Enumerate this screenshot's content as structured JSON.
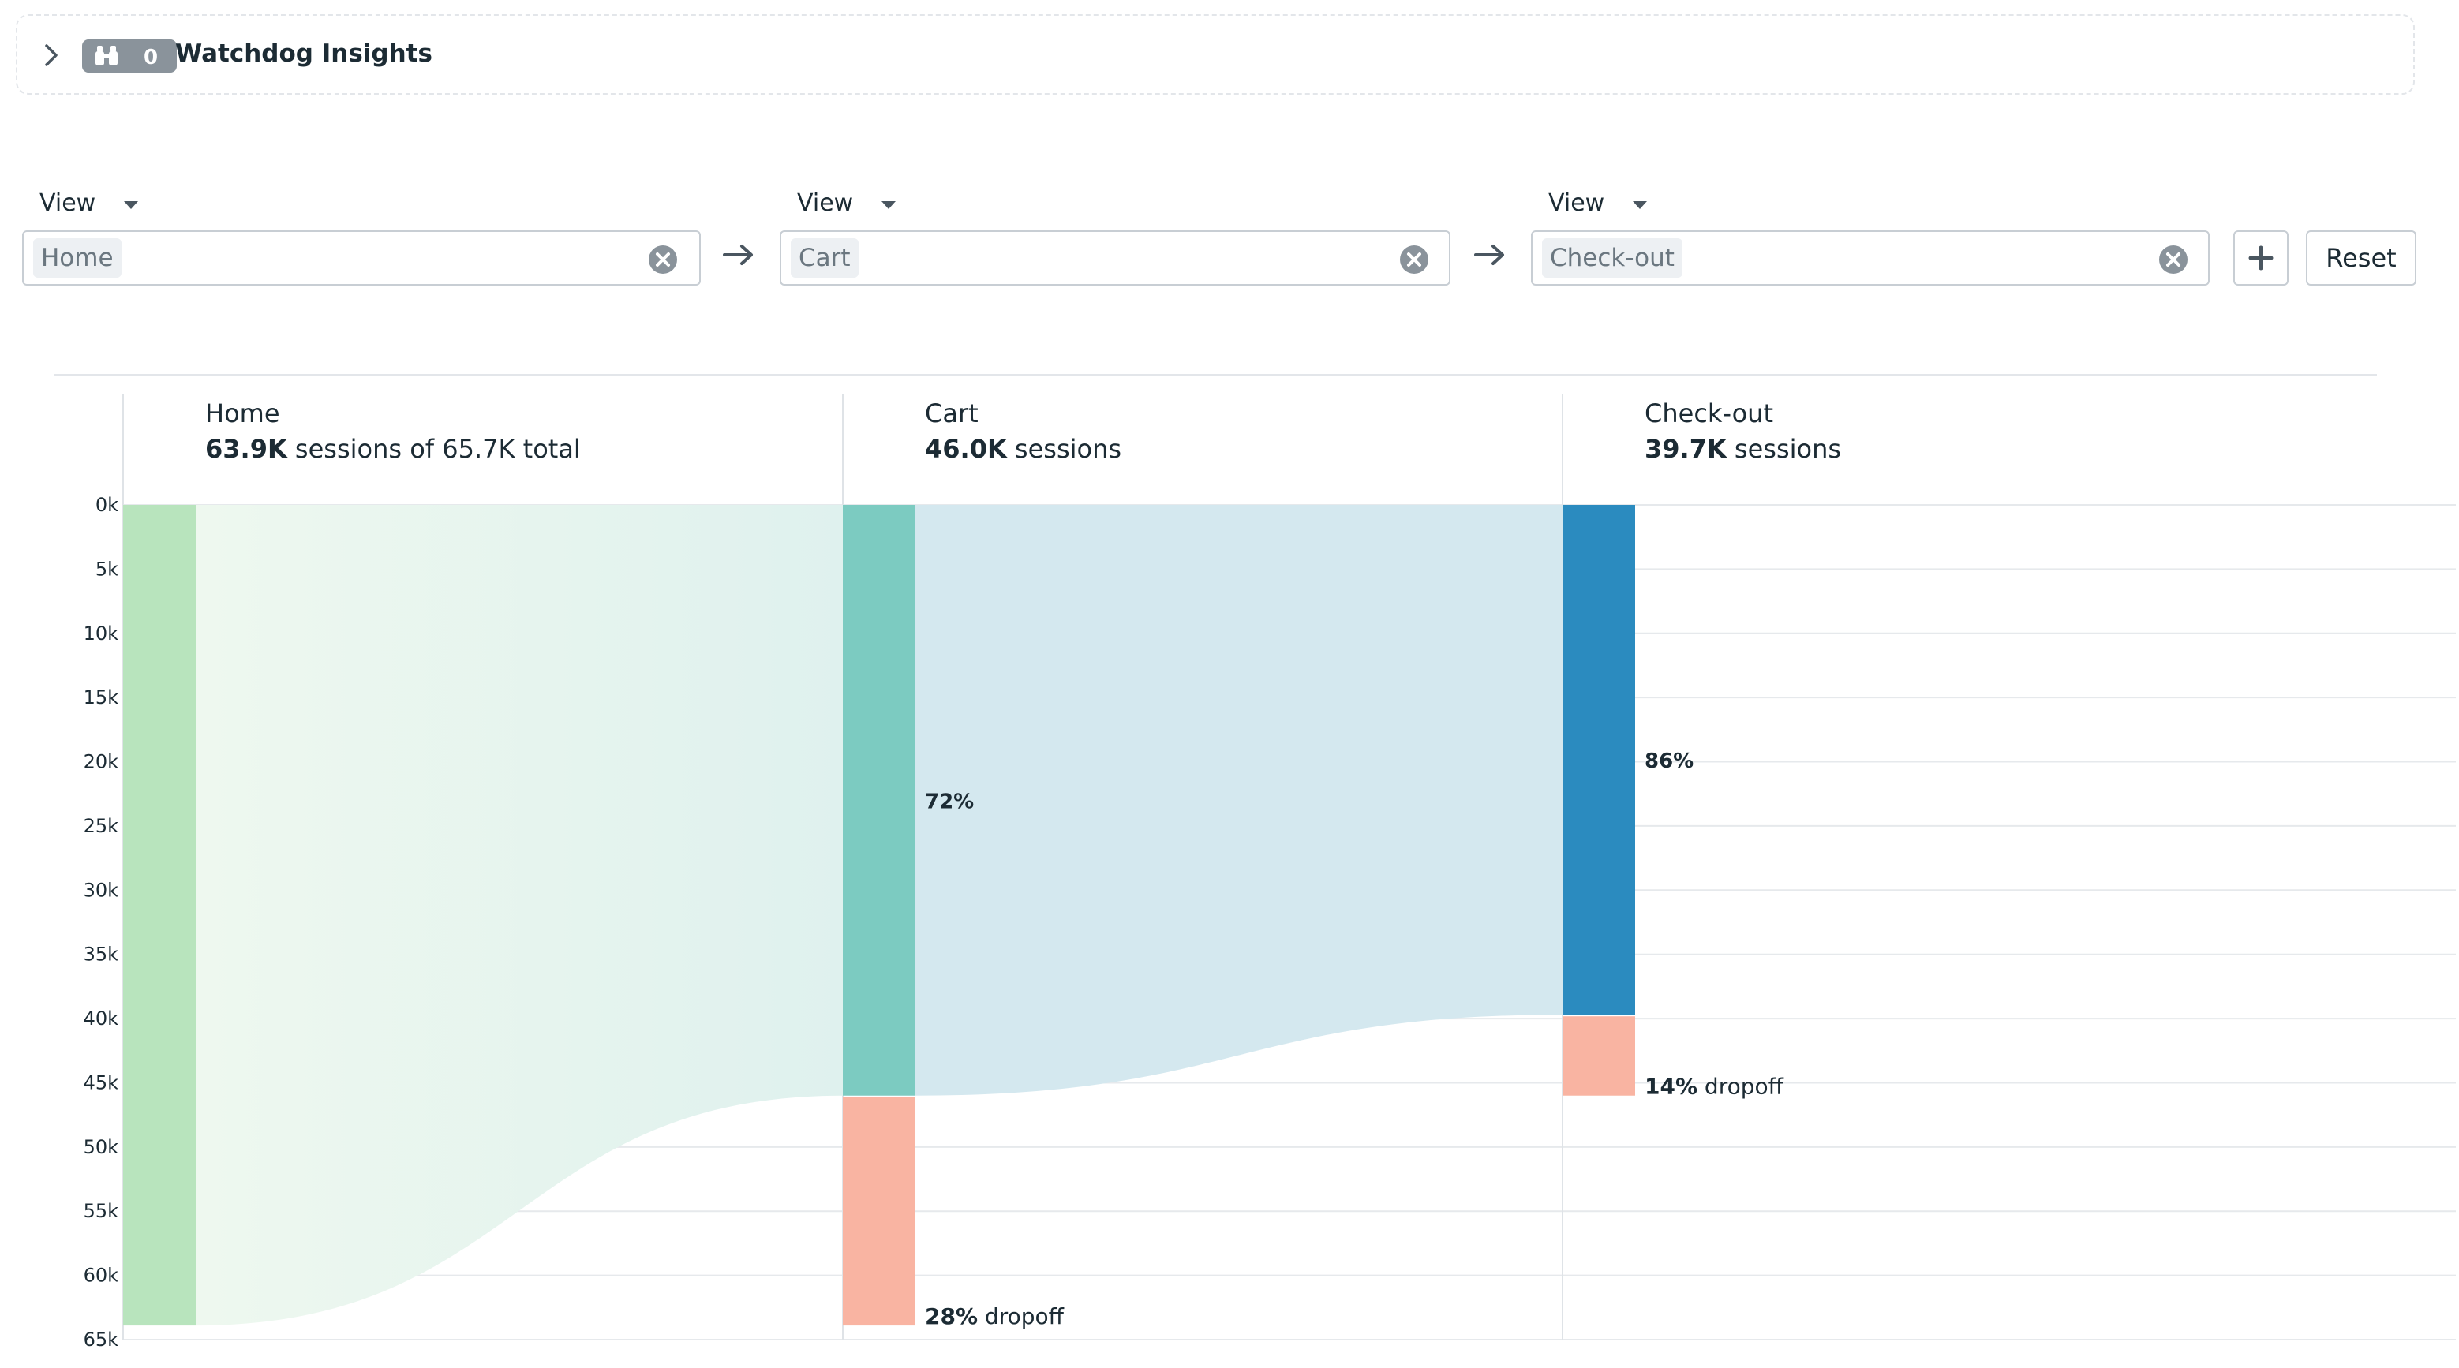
{
  "watchdog": {
    "title": "Watchdog Insights",
    "count": "0"
  },
  "steps": [
    {
      "label": "View",
      "value": "Home"
    },
    {
      "label": "View",
      "value": "Cart"
    },
    {
      "label": "View",
      "value": "Check-out"
    }
  ],
  "actions": {
    "reset_label": "Reset"
  },
  "chart_data": {
    "type": "funnel",
    "y_ticks": [
      "0k",
      "5k",
      "10k",
      "15k",
      "20k",
      "25k",
      "30k",
      "35k",
      "40k",
      "45k",
      "50k",
      "55k",
      "60k",
      "65k"
    ],
    "ylim": [
      0,
      65000
    ],
    "grid": true,
    "steps": [
      {
        "name": "Home",
        "sessions": 63900,
        "sessions_label": "63.9K",
        "suffix": " sessions of 65.7K total",
        "conversion": null,
        "dropoff": null
      },
      {
        "name": "Cart",
        "sessions": 46000,
        "sessions_label": "46.0K",
        "suffix": " sessions",
        "conversion": "72%",
        "dropoff_pct": "28%",
        "dropoff_label": " dropoff",
        "prev_sessions": 63900
      },
      {
        "name": "Check-out",
        "sessions": 39700,
        "sessions_label": "39.7K",
        "suffix": " sessions",
        "conversion": "86%",
        "dropoff_pct": "14%",
        "dropoff_label": " dropoff",
        "prev_sessions": 46000
      }
    ],
    "colors": {
      "home_bar": "#b8e4bd",
      "cart_bar": "#7ccbc1",
      "checkout_bar": "#2b8bbf",
      "dropoff": "#f9b4a2",
      "flow1_start": "#eef8ef",
      "flow1_end": "#dff1ee",
      "flow2": "#d4e8ef",
      "grid": "#e6e9ec"
    }
  }
}
